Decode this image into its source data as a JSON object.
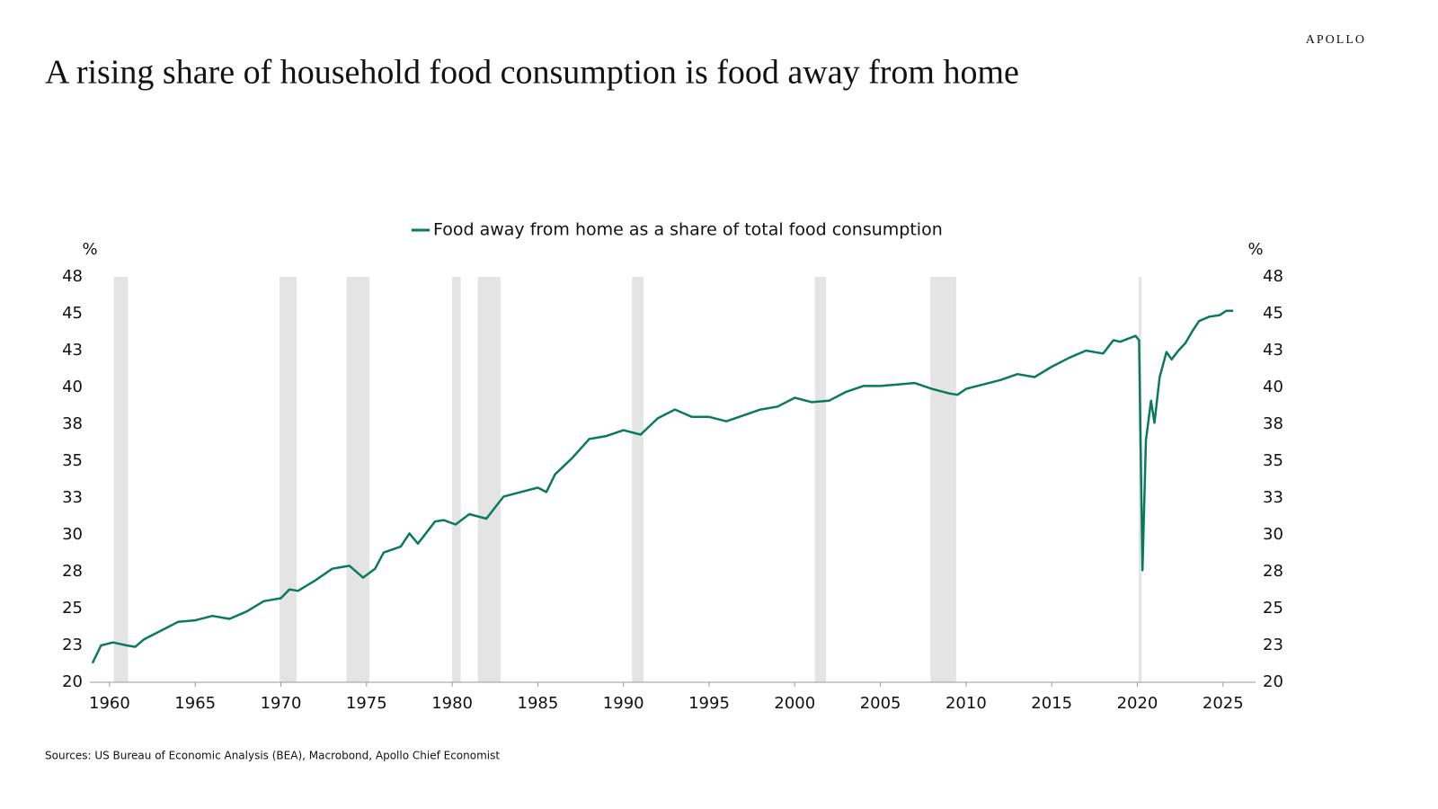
{
  "brand": "APOLLO",
  "source": "Sources: US Bureau of Economic Analysis (BEA), Macrobond, Apollo Chief Economist",
  "chart_data": {
    "type": "line",
    "title": "A rising share of household food consumption is food away from home",
    "y_unit": "%",
    "x": [
      1959.0,
      1959.5,
      1960.2,
      1961,
      1961.5,
      1962,
      1963,
      1964,
      1965,
      1966,
      1967,
      1968,
      1969,
      1970,
      1970.5,
      1971,
      1972,
      1973,
      1974,
      1974.8,
      1975.5,
      1976,
      1977,
      1977.5,
      1978,
      1979,
      1979.5,
      1980.2,
      1981,
      1982,
      1983,
      1984,
      1985,
      1985.5,
      1986,
      1987,
      1988,
      1989,
      1990,
      1991,
      1992,
      1993,
      1994,
      1995,
      1996,
      1997,
      1998,
      1999,
      2000,
      2001,
      2002,
      2003,
      2004,
      2005,
      2006,
      2007,
      2008,
      2009,
      2009.5,
      2010,
      2011,
      2012,
      2013,
      2014,
      2015,
      2016,
      2017,
      2018,
      2018.6,
      2019,
      2019.9,
      2020.1,
      2020.3,
      2020.5,
      2020.8,
      2021.0,
      2021.3,
      2021.7,
      2022.0,
      2022.4,
      2022.8,
      2023.2,
      2023.6,
      2024.2,
      2024.8,
      2025.2,
      2025.6
    ],
    "series": [
      {
        "name": "Food away from home as a share of total food consumption",
        "color": "#0b7a5c",
        "values": [
          21.3,
          22.5,
          22.7,
          22.5,
          22.4,
          22.9,
          23.5,
          24.1,
          24.2,
          24.5,
          24.3,
          24.8,
          25.5,
          25.7,
          26.3,
          26.2,
          26.9,
          27.7,
          27.9,
          27.1,
          27.7,
          28.8,
          29.2,
          30.1,
          29.4,
          30.9,
          31.0,
          30.7,
          31.4,
          31.1,
          32.6,
          32.9,
          33.2,
          32.9,
          34.1,
          35.2,
          36.5,
          36.7,
          37.1,
          36.8,
          37.9,
          38.5,
          38.0,
          38.0,
          37.7,
          38.1,
          38.5,
          38.7,
          39.3,
          39.0,
          39.1,
          39.7,
          40.1,
          40.1,
          40.2,
          40.3,
          39.9,
          39.6,
          39.5,
          39.9,
          40.2,
          40.5,
          40.9,
          40.7,
          41.4,
          42.0,
          42.5,
          42.3,
          43.2,
          43.1,
          43.5,
          43.2,
          27.6,
          36.4,
          39.1,
          37.6,
          40.7,
          42.4,
          41.9,
          42.5,
          43.0,
          43.8,
          44.5,
          44.8,
          44.9,
          45.2,
          45.2
        ]
      }
    ],
    "recessions": [
      [
        1960.25,
        1961.08
      ],
      [
        1969.92,
        1970.92
      ],
      [
        1973.83,
        1975.17
      ],
      [
        1980.0,
        1980.5
      ],
      [
        1981.5,
        1982.83
      ],
      [
        1990.5,
        1991.17
      ],
      [
        2001.17,
        2001.83
      ],
      [
        2007.92,
        2009.42
      ],
      [
        2020.08,
        2020.25
      ]
    ],
    "recession_color": "#e3e4e3",
    "xlim": [
      1958.85,
      2026.9
    ],
    "xticks": [
      1960,
      1965,
      1970,
      1975,
      1980,
      1985,
      1990,
      1995,
      2000,
      2005,
      2010,
      2015,
      2020,
      2025
    ],
    "ylim": [
      20,
      47.5
    ],
    "yticks": [
      20,
      {
        "value": 22.5,
        "label": "23"
      },
      25,
      {
        "value": 27.5,
        "label": "28"
      },
      30,
      {
        "value": 32.5,
        "label": "33"
      },
      35,
      {
        "value": 37.5,
        "label": "38"
      },
      40,
      {
        "value": 42.5,
        "label": "43"
      },
      45,
      {
        "value": 47.5,
        "label": "48"
      }
    ],
    "legend": "top"
  }
}
